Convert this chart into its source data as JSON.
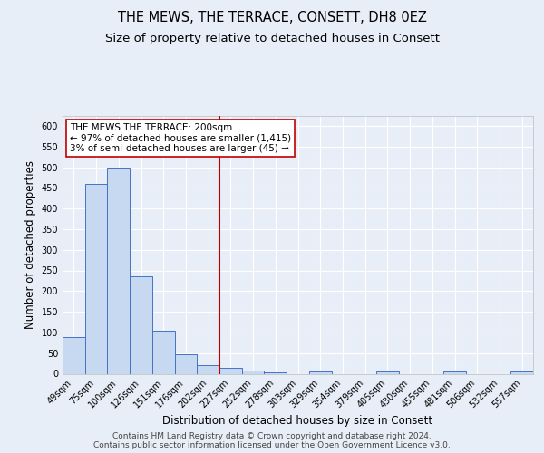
{
  "title": "THE MEWS, THE TERRACE, CONSETT, DH8 0EZ",
  "subtitle": "Size of property relative to detached houses in Consett",
  "xlabel": "Distribution of detached houses by size in Consett",
  "ylabel": "Number of detached properties",
  "footer_line1": "Contains HM Land Registry data © Crown copyright and database right 2024.",
  "footer_line2": "Contains public sector information licensed under the Open Government Licence v3.0.",
  "categories": [
    "49sqm",
    "75sqm",
    "100sqm",
    "126sqm",
    "151sqm",
    "176sqm",
    "202sqm",
    "227sqm",
    "252sqm",
    "278sqm",
    "303sqm",
    "329sqm",
    "354sqm",
    "379sqm",
    "405sqm",
    "430sqm",
    "455sqm",
    "481sqm",
    "506sqm",
    "532sqm",
    "557sqm"
  ],
  "values": [
    88,
    460,
    500,
    235,
    105,
    47,
    20,
    15,
    8,
    3,
    0,
    5,
    0,
    0,
    5,
    0,
    0,
    5,
    0,
    0,
    5
  ],
  "bar_color": "#c6d9f0",
  "bar_edge_color": "#4472c4",
  "vline_color": "#c00000",
  "annotation_title": "THE MEWS THE TERRACE: 200sqm",
  "annotation_line1": "← 97% of detached houses are smaller (1,415)",
  "annotation_line2": "3% of semi-detached houses are larger (45) →",
  "annotation_box_color": "#ffffff",
  "annotation_box_edge": "#c00000",
  "ylim": [
    0,
    625
  ],
  "yticks": [
    0,
    50,
    100,
    150,
    200,
    250,
    300,
    350,
    400,
    450,
    500,
    550,
    600
  ],
  "background_color": "#e8eef7",
  "grid_color": "#ffffff",
  "title_fontsize": 10.5,
  "subtitle_fontsize": 9.5,
  "axis_label_fontsize": 8.5,
  "tick_fontsize": 7,
  "annotation_fontsize": 7.5,
  "footer_fontsize": 6.5
}
